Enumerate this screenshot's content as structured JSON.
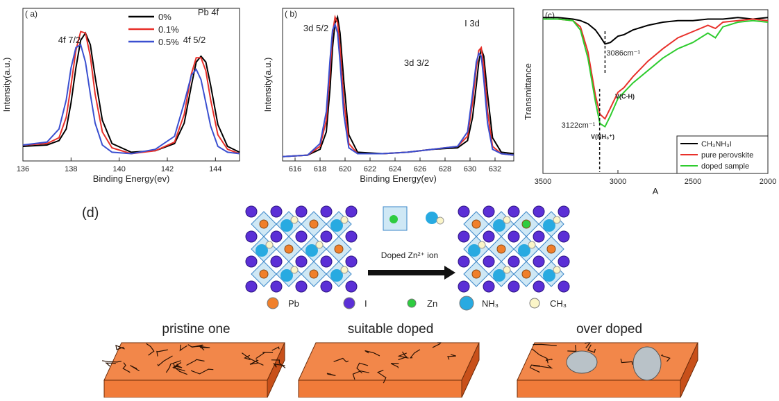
{
  "chart_data": [
    {
      "type": "line",
      "panel_label": "( a)",
      "x_label": "Binding Energy(ev)",
      "y_label": "Intensity(a.u.)",
      "x": [
        136,
        137,
        137.5,
        137.8,
        138,
        138.2,
        138.4,
        138.6,
        138.8,
        139,
        139.3,
        139.7,
        140.5,
        141.5,
        142.3,
        142.7,
        143,
        143.2,
        143.4,
        143.6,
        143.8,
        144.1,
        144.5,
        145
      ],
      "series": [
        {
          "name": "0%",
          "color": "#000000",
          "values": [
            10,
            11,
            14,
            22,
            40,
            64,
            83,
            88,
            80,
            58,
            28,
            12,
            6,
            7,
            12,
            26,
            52,
            68,
            72,
            68,
            52,
            25,
            10,
            6
          ]
        },
        {
          "name": "0.1%",
          "color": "#e8302a",
          "values": [
            11,
            12,
            16,
            30,
            52,
            76,
            89,
            88,
            72,
            46,
            20,
            9,
            5,
            7,
            13,
            32,
            60,
            71,
            71,
            62,
            42,
            18,
            8,
            5
          ]
        },
        {
          "name": "0.5%",
          "color": "#3a4fd0",
          "values": [
            11,
            13,
            22,
            42,
            64,
            78,
            80,
            68,
            46,
            26,
            11,
            6,
            5,
            8,
            17,
            40,
            59,
            63,
            56,
            40,
            24,
            10,
            6,
            5
          ]
        }
      ],
      "xlim": [
        136,
        145
      ],
      "xticks": [
        136,
        138,
        140,
        142,
        144
      ],
      "ylim": [
        0,
        105
      ],
      "annotations": [
        "4f 7/2",
        "4f 5/2",
        "Pb 4f"
      ]
    },
    {
      "type": "line",
      "panel_label": "( b)",
      "x_label": "Binding Energy(ev)",
      "y_label": "Intensity(a.u.)",
      "x": [
        615,
        617,
        618,
        618.5,
        618.8,
        619,
        619.2,
        619.4,
        619.6,
        619.9,
        620.3,
        621,
        623,
        625,
        627,
        629,
        629.8,
        630.2,
        630.5,
        630.7,
        630.9,
        631.1,
        631.4,
        631.8,
        632.5,
        633.5
      ],
      "series": [
        {
          "name": "0%",
          "color": "#000000",
          "values": [
            3,
            4,
            8,
            20,
            50,
            78,
            95,
            99,
            88,
            55,
            18,
            6,
            5,
            6,
            8,
            9,
            14,
            30,
            52,
            68,
            77,
            72,
            46,
            16,
            6,
            5
          ]
        },
        {
          "name": "0.1%",
          "color": "#e8302a",
          "values": [
            3,
            4,
            10,
            28,
            62,
            88,
            99,
            95,
            78,
            42,
            12,
            5,
            5,
            6,
            8,
            10,
            17,
            40,
            64,
            76,
            78,
            65,
            34,
            10,
            5,
            4
          ]
        },
        {
          "name": "0.5%",
          "color": "#3a4fd0",
          "values": [
            3,
            4,
            12,
            34,
            70,
            90,
            94,
            88,
            68,
            32,
            9,
            5,
            5,
            6,
            8,
            10,
            20,
            46,
            68,
            74,
            72,
            56,
            26,
            8,
            5,
            4
          ]
        }
      ],
      "xlim": [
        615,
        633.5
      ],
      "xticks": [
        616,
        618,
        620,
        622,
        624,
        626,
        628,
        630,
        632
      ],
      "ylim": [
        0,
        105
      ],
      "annotations": [
        "3d 5/2",
        "3d 3/2",
        "I 3d"
      ]
    },
    {
      "type": "line",
      "panel_label": "(c)",
      "x_label": "A",
      "y_label": "Transmittance",
      "x": [
        3500,
        3400,
        3300,
        3250,
        3200,
        3150,
        3120,
        3086,
        3050,
        3000,
        2960,
        2900,
        2800,
        2700,
        2600,
        2500,
        2400,
        2350,
        2300,
        2200,
        2100,
        2000
      ],
      "series": [
        {
          "name": "CH₃NH₃I",
          "color": "#000000",
          "values": [
            100,
            100,
            99,
            98,
            96,
            92,
            88,
            83,
            84,
            88,
            89,
            92,
            95,
            97,
            98,
            98,
            99,
            99,
            99,
            100,
            99,
            100
          ]
        },
        {
          "name": "pure perovskite",
          "color": "#e8302a",
          "values": [
            99,
            99,
            98,
            94,
            78,
            50,
            38,
            35,
            42,
            52,
            55,
            62,
            72,
            80,
            87,
            91,
            95,
            93,
            97,
            98,
            99,
            98
          ]
        },
        {
          "name": "doped sample",
          "color": "#2ecc2e",
          "values": [
            99,
            99,
            98,
            92,
            74,
            46,
            32,
            30,
            37,
            48,
            52,
            58,
            66,
            74,
            80,
            84,
            90,
            87,
            94,
            97,
            98,
            97
          ]
        }
      ],
      "xlim": [
        3500,
        2000
      ],
      "xticks": [
        3500,
        3000,
        2500,
        2000
      ],
      "ylim": [
        0,
        105
      ],
      "markers": [
        {
          "x": 3086,
          "label": "3086cm⁻¹"
        },
        {
          "x": 3122,
          "label": "3122cm⁻¹"
        }
      ],
      "annotations": [
        "V(C-H)",
        "V(NH₃⁺)"
      ]
    }
  ],
  "diagram": {
    "label": "(d)",
    "dopant": "Doped Zn²⁺ ion",
    "legend": [
      "Pb",
      "I",
      "Zn",
      "NH₃",
      "CH₃"
    ],
    "films": [
      "pristine one",
      "suitable doped",
      "over doped"
    ]
  }
}
